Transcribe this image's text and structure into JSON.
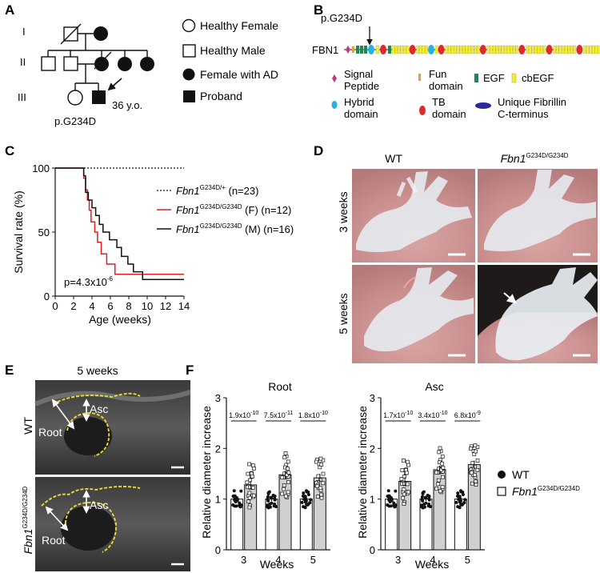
{
  "panels": {
    "A": "A",
    "B": "B",
    "C": "C",
    "D": "D",
    "E": "E",
    "F": "F"
  },
  "pedigree": {
    "generations": [
      "I",
      "II",
      "III"
    ],
    "proband_age": "36 y.o.",
    "variant": "p.G234D",
    "legend": [
      "Healthy Female",
      "Healthy Male",
      "Female with AD",
      "Proband"
    ]
  },
  "protein": {
    "name": "FBN1",
    "variant": "p.G234D",
    "legend": {
      "signal": [
        "Signal",
        "Peptide"
      ],
      "fun": [
        "Fun",
        "domain"
      ],
      "egf": "EGF",
      "cbegf": "cbEGF",
      "hybrid": [
        "Hybrid",
        "domain"
      ],
      "tb": [
        "TB",
        "domain"
      ],
      "cterm": [
        "Unique Fibrillin",
        "C-terminus"
      ]
    },
    "colors": {
      "fun": "#e0a050",
      "egf": "#1a8a50",
      "cbegf": "#f5ee2a",
      "hybrid": "#2aaee8",
      "tb": "#e02a2a",
      "cterm": "#2a2a9a",
      "signal": "#c03a7a"
    }
  },
  "survival": {
    "ylabel": "Survival rate (%)",
    "xlabel": "Age (weeks)",
    "pvalue_base": "p=4.3x10",
    "pvalue_exp": "-6",
    "legend": [
      {
        "gene": "Fbn1",
        "sup": "G234D/+",
        "rest": " (n=23)",
        "color": "#111111",
        "dash": true
      },
      {
        "gene": "Fbn1",
        "sup": "G234D/G234D",
        "rest": " (F) (n=12)",
        "color": "#e02020",
        "dash": false
      },
      {
        "gene": "Fbn1",
        "sup": "G234D/G234D",
        "rest": " (M) (n=16)",
        "color": "#111111",
        "dash": false
      }
    ]
  },
  "chart_data": [
    {
      "type": "line",
      "chart": "survival",
      "xlabel": "Age (weeks)",
      "ylabel": "Survival rate (%)",
      "xlim": [
        0,
        14
      ],
      "ylim": [
        0,
        100
      ],
      "xticks": [
        0,
        2,
        4,
        6,
        8,
        10,
        12,
        14
      ],
      "yticks": [
        0,
        50,
        100
      ],
      "series": [
        {
          "name": "Fbn1 G234D/+ (n=23)",
          "x": [
            0,
            14
          ],
          "y": [
            100,
            100
          ]
        },
        {
          "name": "Fbn1 G234D/G234D (F) (n=12)",
          "x": [
            0,
            3,
            3.1,
            3.3,
            3.5,
            3.7,
            3.9,
            4.3,
            4.6,
            5.0,
            5.6,
            6.5,
            10.3,
            10.6,
            14
          ],
          "y": [
            100,
            100,
            92,
            83,
            75,
            67,
            58,
            50,
            42,
            33,
            25,
            17,
            17,
            17,
            17
          ]
        },
        {
          "name": "Fbn1 G234D/G234D (M) (n=16)",
          "x": [
            0,
            2.9,
            3.1,
            3.3,
            3.6,
            4.0,
            4.4,
            4.8,
            5.2,
            5.9,
            6.7,
            7.2,
            7.9,
            8.5,
            9.5,
            10.7,
            14
          ],
          "y": [
            100,
            100,
            94,
            81,
            75,
            69,
            63,
            56,
            50,
            44,
            38,
            31,
            25,
            19,
            13,
            13,
            13
          ]
        }
      ],
      "annotations": [
        "p=4.3x10-6"
      ]
    },
    {
      "type": "bar",
      "chart": "root",
      "title": "Root",
      "xlabel": "Weeks",
      "ylabel": "Relative diameter increase",
      "categories": [
        "3",
        "4",
        "5"
      ],
      "ylim": [
        0,
        3
      ],
      "yticks": [
        0,
        1,
        2,
        3
      ],
      "series": [
        {
          "name": "WT",
          "values": [
            1.0,
            1.0,
            1.0
          ]
        },
        {
          "name": "Fbn1 G234D/G234D",
          "values": [
            1.28,
            1.48,
            1.42
          ]
        }
      ],
      "pvalues": [
        {
          "base": "1.9x10",
          "exp": "-10"
        },
        {
          "base": "7.5x10",
          "exp": "-11"
        },
        {
          "base": "1.8x10",
          "exp": "-10"
        }
      ]
    },
    {
      "type": "bar",
      "chart": "asc",
      "title": "Asc",
      "xlabel": "Weeks",
      "ylabel": "Relative diameter increase",
      "categories": [
        "3",
        "4",
        "5"
      ],
      "ylim": [
        0,
        3
      ],
      "yticks": [
        0,
        1,
        2,
        3
      ],
      "series": [
        {
          "name": "WT",
          "values": [
            1.0,
            1.0,
            1.0
          ]
        },
        {
          "name": "Fbn1 G234D/G234D",
          "values": [
            1.35,
            1.58,
            1.68
          ]
        }
      ],
      "pvalues": [
        {
          "base": "1.7x10",
          "exp": "-10"
        },
        {
          "base": "3.4x10",
          "exp": "-10"
        },
        {
          "base": "6.8x10",
          "exp": "-9"
        }
      ]
    }
  ],
  "bars_legend": {
    "wt": "WT",
    "mut_gene": "Fbn1",
    "mut_sup": "G234D/G234D"
  },
  "photos": {
    "cols": [
      {
        "text": "WT",
        "gene": "",
        "sup": ""
      },
      {
        "text": "",
        "gene": "Fbn1",
        "sup": "G234D/G234D"
      }
    ],
    "rows": [
      "3 weeks",
      "5 weeks"
    ]
  },
  "ultrasound": {
    "title": "5 weeks",
    "rows": [
      {
        "text": "WT",
        "gene": "",
        "sup": ""
      },
      {
        "text": "",
        "gene": "Fbn1",
        "sup": "G234D/G234D"
      }
    ],
    "labels": {
      "asc": "Asc",
      "root": "Root"
    }
  }
}
